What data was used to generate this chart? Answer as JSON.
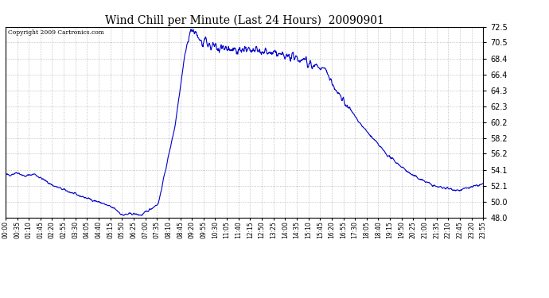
{
  "title": "Wind Chill per Minute (Last 24 Hours)  20090901",
  "copyright": "Copyright 2009 Cartronics.com",
  "line_color": "#0000cc",
  "background_color": "#ffffff",
  "grid_color": "#aaaaaa",
  "ylim": [
    48.0,
    72.5
  ],
  "yticks": [
    48.0,
    50.0,
    52.1,
    54.1,
    56.2,
    58.2,
    60.2,
    62.3,
    64.3,
    66.4,
    68.4,
    70.5,
    72.5
  ],
  "xtick_labels": [
    "00:00",
    "00:35",
    "01:10",
    "01:45",
    "02:20",
    "02:55",
    "03:30",
    "04:05",
    "04:40",
    "05:15",
    "05:50",
    "06:25",
    "07:00",
    "07:35",
    "08:10",
    "08:45",
    "09:20",
    "09:55",
    "10:30",
    "11:05",
    "11:40",
    "12:15",
    "12:50",
    "13:25",
    "14:00",
    "14:35",
    "15:10",
    "15:45",
    "16:20",
    "16:55",
    "17:30",
    "18:05",
    "18:40",
    "19:15",
    "19:50",
    "20:25",
    "21:00",
    "21:35",
    "22:10",
    "22:45",
    "23:20",
    "23:55"
  ],
  "num_points": 1440,
  "figsize": [
    6.9,
    3.75
  ],
  "dpi": 100
}
